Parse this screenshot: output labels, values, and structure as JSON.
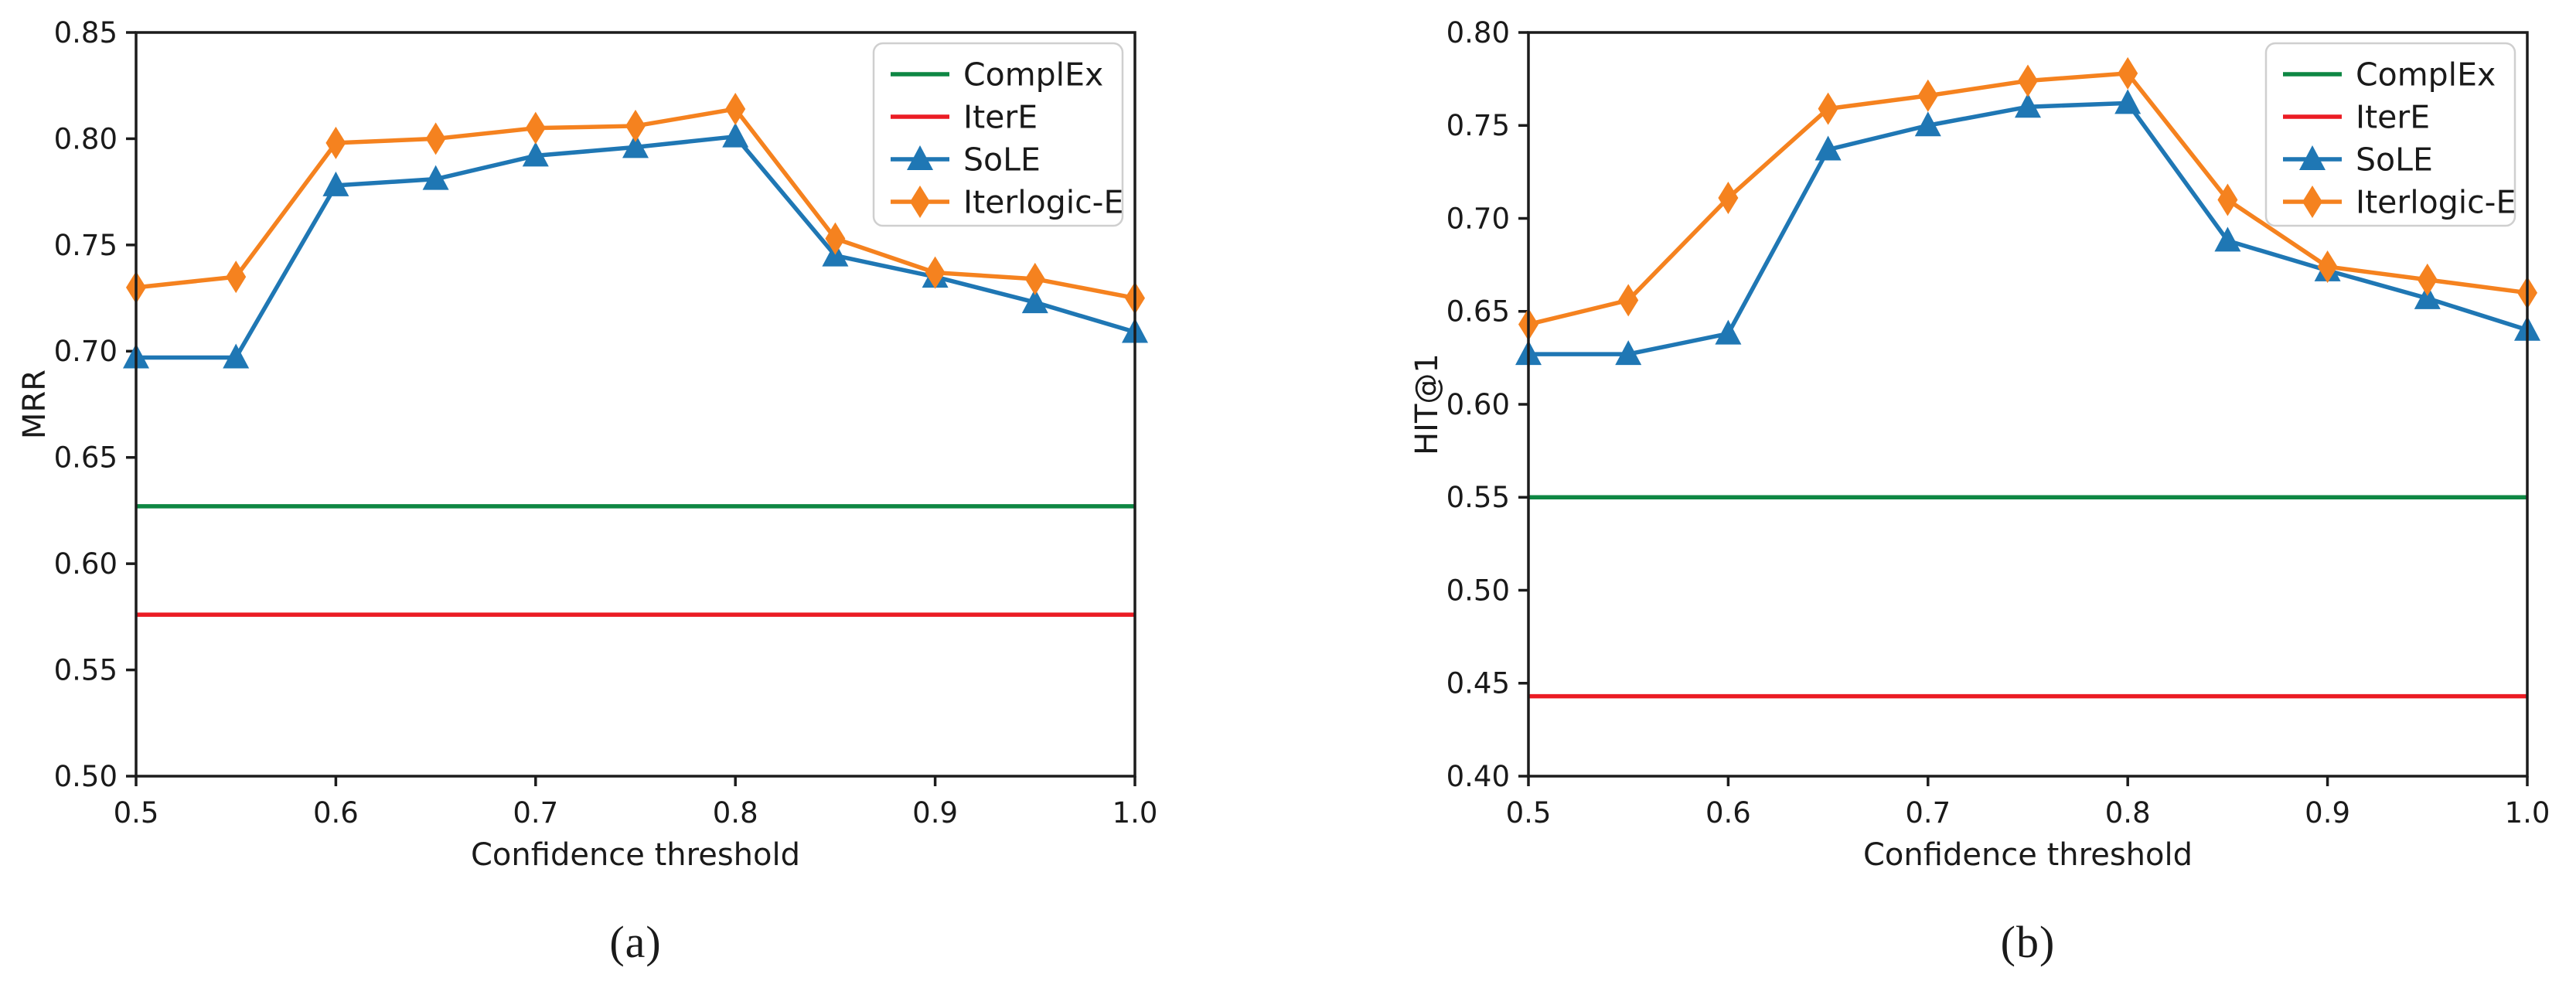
{
  "colors": {
    "complex": "#0e8743",
    "itere": "#eb1c24",
    "sole": "#1f77b4",
    "iterlogic": "#f5821f",
    "axis": "#1c1c1c",
    "text": "#1a1a1a",
    "legend_border": "#cfcfcf",
    "legend_fill": "#ffffff"
  },
  "chart_data": [
    {
      "type": "line",
      "title": "",
      "caption": "(a)",
      "xlabel": "Confidence threshold",
      "ylabel": "MRR",
      "grid": false,
      "legend_position": "upper right",
      "xlim": [
        0.5,
        1.0
      ],
      "ylim": [
        0.5,
        0.85
      ],
      "x": [
        0.5,
        0.55,
        0.6,
        0.65,
        0.7,
        0.75,
        0.8,
        0.85,
        0.9,
        0.95,
        1.0
      ],
      "xticks": [
        0.5,
        0.6,
        0.7,
        0.8,
        0.9,
        1.0
      ],
      "xtick_labels": [
        "0.5",
        "0.6",
        "0.7",
        "0.8",
        "0.9",
        "1.0"
      ],
      "yticks": [
        0.5,
        0.55,
        0.6,
        0.65,
        0.7,
        0.75,
        0.8,
        0.85
      ],
      "ytick_labels": [
        "0.50",
        "0.55",
        "0.60",
        "0.65",
        "0.70",
        "0.75",
        "0.80",
        "0.85"
      ],
      "series": [
        {
          "name": "ComplEx",
          "color_key": "complex",
          "marker": "none",
          "constant": 0.627
        },
        {
          "name": "IterE",
          "color_key": "itere",
          "marker": "none",
          "constant": 0.576
        },
        {
          "name": "SoLE",
          "color_key": "sole",
          "marker": "triangle",
          "values": [
            0.697,
            0.697,
            0.778,
            0.781,
            0.792,
            0.796,
            0.801,
            0.745,
            0.735,
            0.723,
            0.709
          ]
        },
        {
          "name": "Iterlogic-E",
          "color_key": "iterlogic",
          "marker": "diamond",
          "values": [
            0.73,
            0.735,
            0.798,
            0.8,
            0.805,
            0.806,
            0.814,
            0.753,
            0.737,
            0.734,
            0.725
          ]
        }
      ]
    },
    {
      "type": "line",
      "title": "",
      "caption": "(b)",
      "xlabel": "Confidence threshold",
      "ylabel": "HIT@1",
      "grid": false,
      "legend_position": "upper right",
      "xlim": [
        0.5,
        1.0
      ],
      "ylim": [
        0.4,
        0.8
      ],
      "x": [
        0.5,
        0.55,
        0.6,
        0.65,
        0.7,
        0.75,
        0.8,
        0.85,
        0.9,
        0.95,
        1.0
      ],
      "xticks": [
        0.5,
        0.6,
        0.7,
        0.8,
        0.9,
        1.0
      ],
      "xtick_labels": [
        "0.5",
        "0.6",
        "0.7",
        "0.8",
        "0.9",
        "1.0"
      ],
      "yticks": [
        0.4,
        0.45,
        0.5,
        0.55,
        0.6,
        0.65,
        0.7,
        0.75,
        0.8
      ],
      "ytick_labels": [
        "0.40",
        "0.45",
        "0.50",
        "0.55",
        "0.60",
        "0.65",
        "0.70",
        "0.75",
        "0.80"
      ],
      "series": [
        {
          "name": "ComplEx",
          "color_key": "complex",
          "marker": "none",
          "constant": 0.55
        },
        {
          "name": "IterE",
          "color_key": "itere",
          "marker": "none",
          "constant": 0.443
        },
        {
          "name": "SoLE",
          "color_key": "sole",
          "marker": "triangle",
          "values": [
            0.627,
            0.627,
            0.638,
            0.737,
            0.75,
            0.76,
            0.762,
            0.688,
            0.672,
            0.657,
            0.64
          ]
        },
        {
          "name": "Iterlogic-E",
          "color_key": "iterlogic",
          "marker": "diamond",
          "values": [
            0.643,
            0.656,
            0.711,
            0.759,
            0.766,
            0.774,
            0.778,
            0.71,
            0.674,
            0.667,
            0.66
          ]
        }
      ]
    }
  ]
}
